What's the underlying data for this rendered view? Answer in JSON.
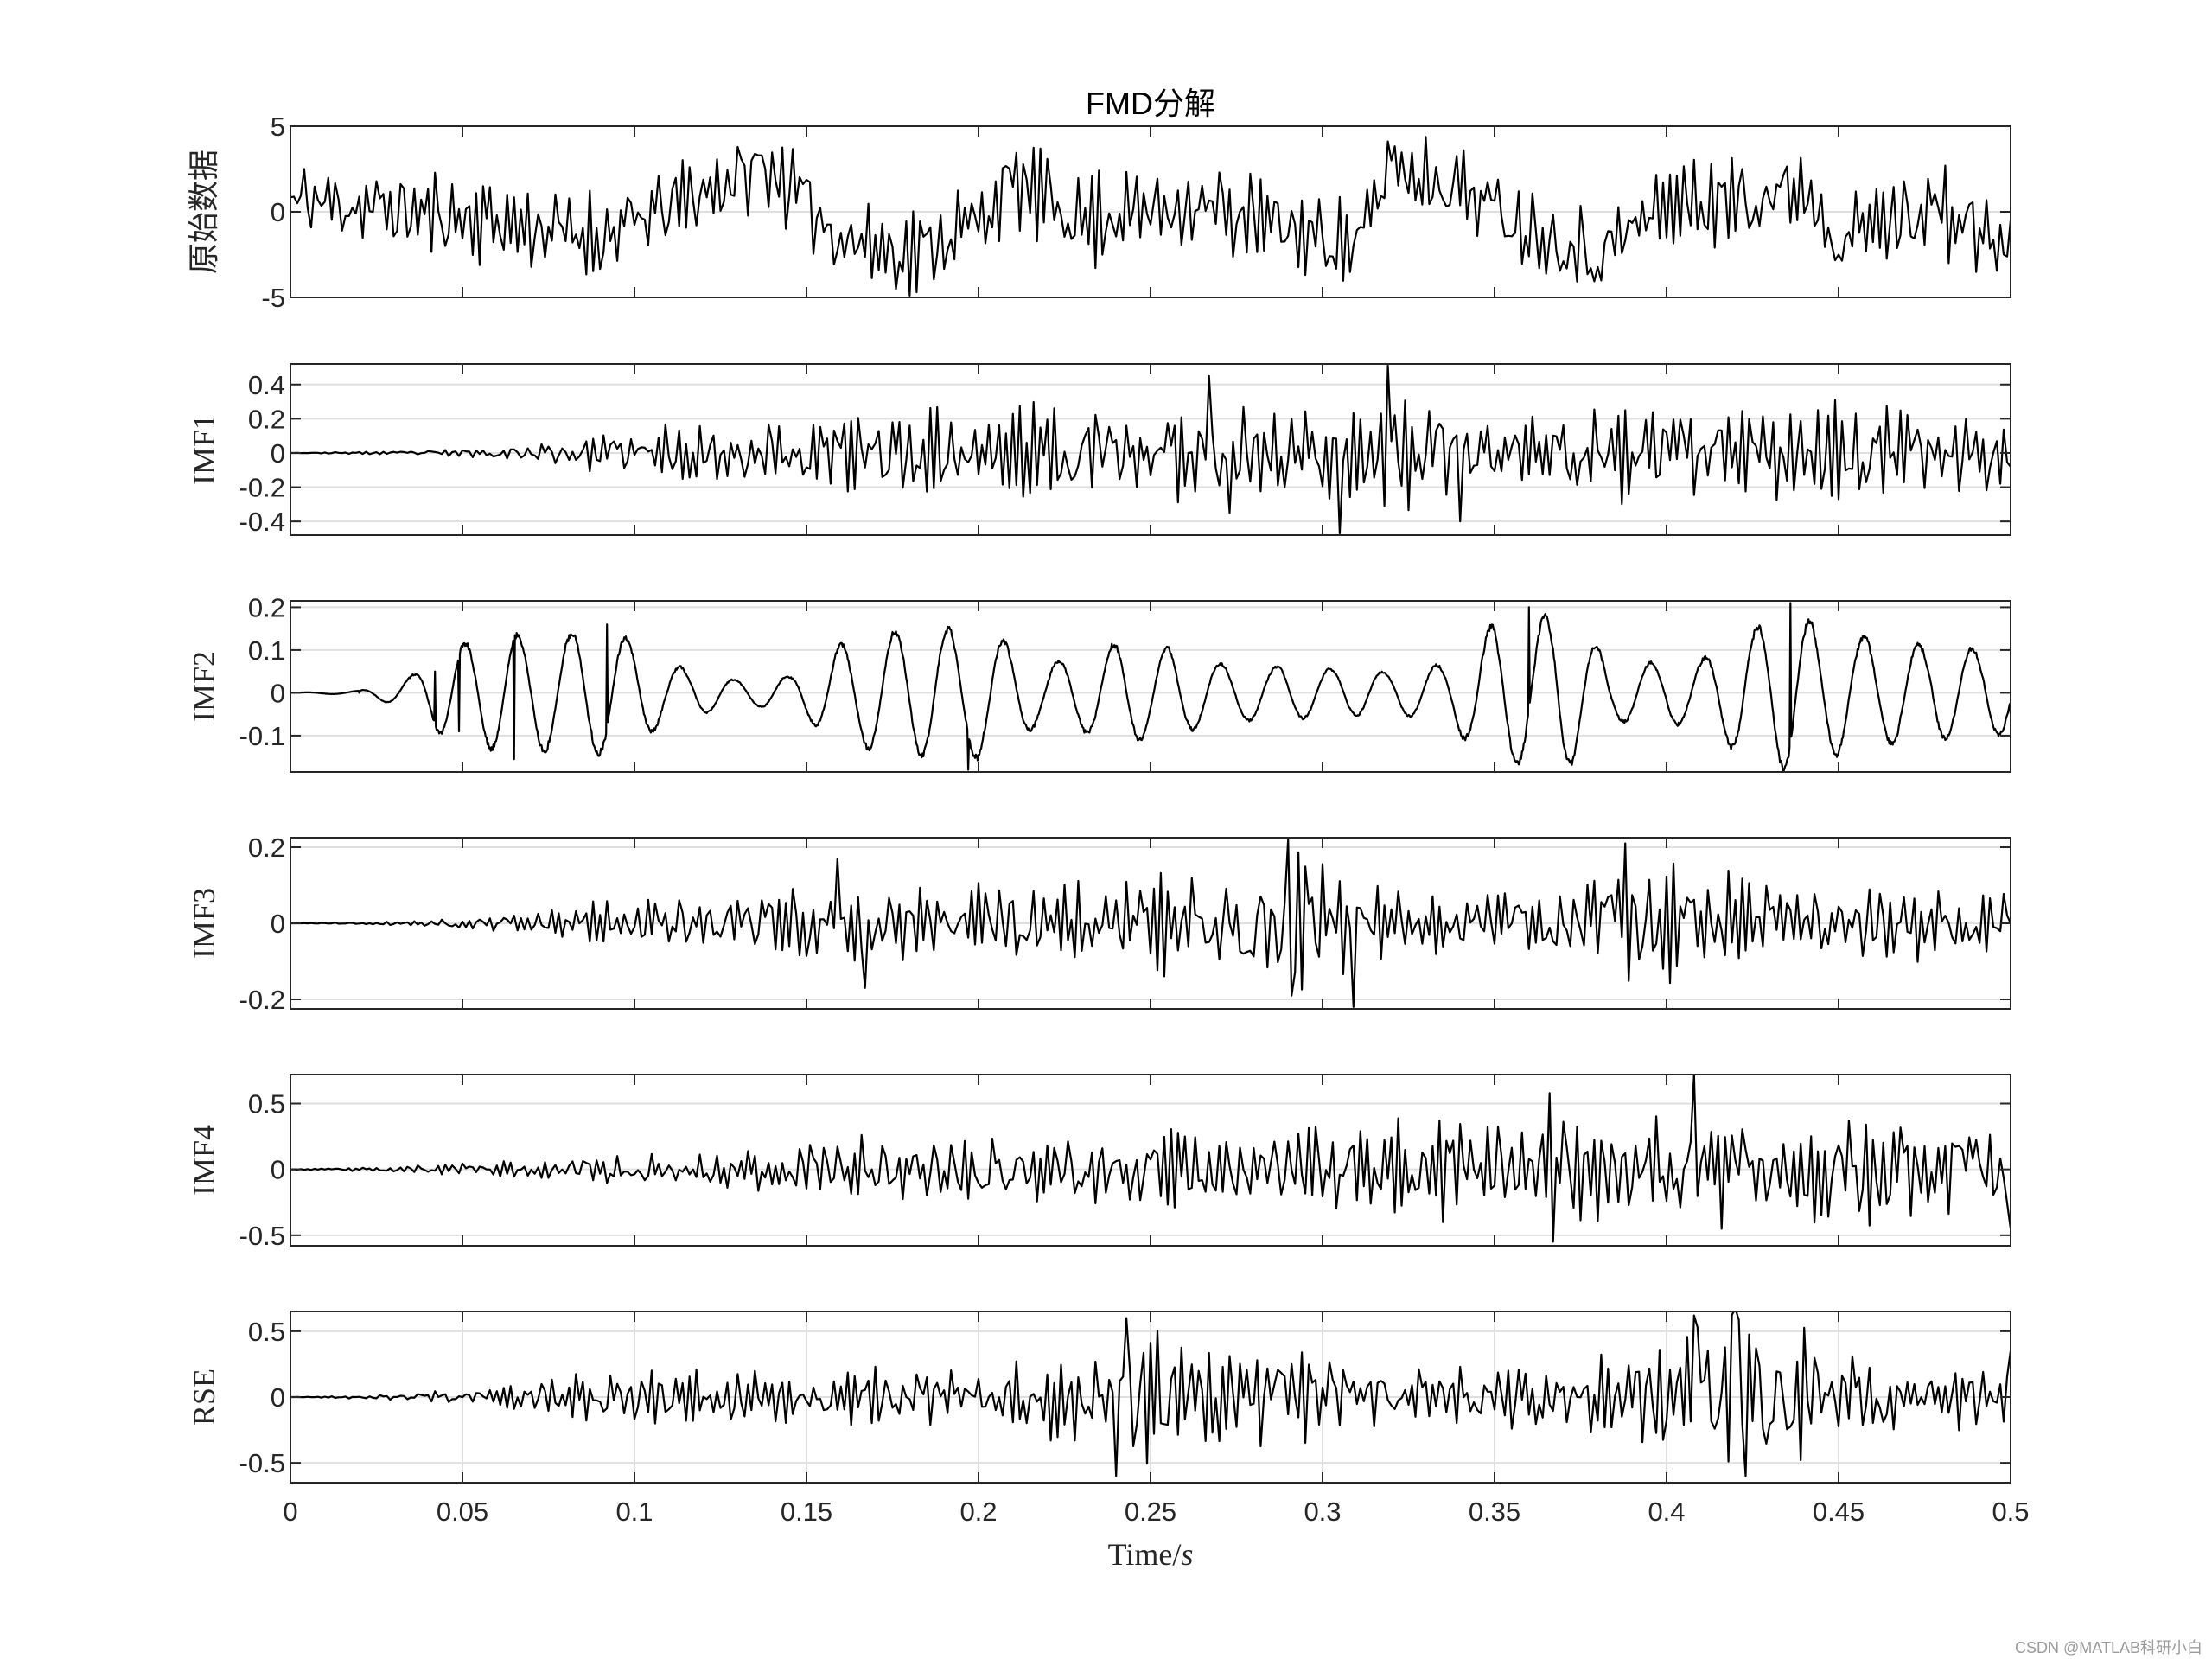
{
  "figure": {
    "title": "FMD分解",
    "xlabel_text": "Time/",
    "xlabel_italic": "s",
    "watermark": "CSDN @MATLAB科研小白",
    "line_color": "#000000",
    "grid_color": "#dfdfdf",
    "axes_color": "#262626"
  },
  "chart_data": [
    {
      "type": "line",
      "name": "原始数据",
      "ylabel": "原始数据",
      "ylim": [
        -5,
        5
      ],
      "yticks": [
        5,
        0,
        -5
      ],
      "ytick_labels": [
        "5",
        "0",
        "-5"
      ],
      "ygrid": [
        0
      ],
      "xlim": [
        0,
        0.5
      ],
      "xgrid": [],
      "show_xticks": false,
      "samples": 500,
      "seed": 11,
      "envelope": [
        [
          0,
          2.5
        ],
        [
          0.5,
          2.5
        ]
      ],
      "trend": [
        [
          0,
          0.8
        ],
        [
          0.06,
          -0.6
        ],
        [
          0.09,
          -1.5
        ],
        [
          0.13,
          2.0
        ],
        [
          0.14,
          2.5
        ],
        [
          0.16,
          -1.5
        ],
        [
          0.18,
          -2.5
        ],
        [
          0.2,
          -0.5
        ],
        [
          0.21,
          1.8
        ],
        [
          0.23,
          -0.5
        ],
        [
          0.26,
          0.5
        ],
        [
          0.3,
          -1.5
        ],
        [
          0.31,
          -2.0
        ],
        [
          0.32,
          2.5
        ],
        [
          0.34,
          1.5
        ],
        [
          0.36,
          -1.0
        ],
        [
          0.38,
          -2.5
        ],
        [
          0.4,
          0.5
        ],
        [
          0.42,
          0.5
        ],
        [
          0.44,
          1.5
        ],
        [
          0.45,
          -1.5
        ],
        [
          0.48,
          0.5
        ],
        [
          0.5,
          -2.5
        ]
      ],
      "data_points": [
        [
          0.002,
          0.5
        ],
        [
          0.004,
          2.5
        ],
        [
          0.056,
          1.5
        ],
        [
          0.136,
          3.3
        ],
        [
          0.178,
          -3.5
        ],
        [
          0.27,
          2.3
        ],
        [
          0.32,
          3.0
        ],
        [
          0.378,
          -3.3
        ],
        [
          0.4,
          -1.5
        ],
        [
          0.422,
          2.5
        ],
        [
          0.482,
          -3.0
        ],
        [
          0.5,
          -0.5
        ]
      ]
    },
    {
      "type": "line",
      "name": "IMF1",
      "ylabel": "IMF1",
      "ylim": [
        -0.48,
        0.52
      ],
      "yticks": [
        0.4,
        0.2,
        0,
        -0.2,
        -0.4
      ],
      "ytick_labels": [
        "0.4",
        "0.2",
        "0",
        "-0.2",
        "-0.4"
      ],
      "ygrid": [
        0.4,
        0.2,
        0,
        -0.2,
        -0.4
      ],
      "xlim": [
        0,
        0.5
      ],
      "xgrid": [],
      "show_xticks": false,
      "samples": 500,
      "seed": 23,
      "envelope": [
        [
          0,
          0.0
        ],
        [
          0.03,
          0.01
        ],
        [
          0.06,
          0.03
        ],
        [
          0.09,
          0.1
        ],
        [
          0.12,
          0.17
        ],
        [
          0.15,
          0.22
        ],
        [
          0.2,
          0.24
        ],
        [
          0.26,
          0.27
        ],
        [
          0.32,
          0.3
        ],
        [
          0.36,
          0.25
        ],
        [
          0.42,
          0.24
        ],
        [
          0.5,
          0.22
        ]
      ],
      "trend": [],
      "data_points": [
        [
          0.267,
          0.45
        ],
        [
          0.273,
          -0.35
        ],
        [
          0.305,
          -0.47
        ],
        [
          0.319,
          0.51
        ],
        [
          0.34,
          -0.4
        ],
        [
          0.5,
          -0.08
        ]
      ]
    },
    {
      "type": "line",
      "name": "IMF2",
      "ylabel": "IMF2",
      "ylim": [
        -0.185,
        0.215
      ],
      "yticks": [
        0.2,
        0.1,
        0,
        -0.1
      ],
      "ytick_labels": [
        "0.2",
        "0.1",
        "0",
        "-0.1"
      ],
      "ygrid": [
        0.2,
        0.1,
        0,
        -0.1
      ],
      "xlim": [
        0,
        0.5
      ],
      "xgrid": [],
      "show_xticks": false,
      "samples": 2000,
      "seed": 37,
      "oscillator": {
        "frequency": 64
      },
      "envelope": [
        [
          0,
          0.0
        ],
        [
          0.02,
          0.005
        ],
        [
          0.035,
          0.04
        ],
        [
          0.045,
          0.11
        ],
        [
          0.06,
          0.14
        ],
        [
          0.095,
          0.15
        ],
        [
          0.11,
          0.07
        ],
        [
          0.13,
          0.03
        ],
        [
          0.145,
          0.04
        ],
        [
          0.16,
          0.12
        ],
        [
          0.175,
          0.15
        ],
        [
          0.2,
          0.16
        ],
        [
          0.22,
          0.07
        ],
        [
          0.24,
          0.12
        ],
        [
          0.255,
          0.11
        ],
        [
          0.27,
          0.07
        ],
        [
          0.3,
          0.06
        ],
        [
          0.32,
          0.05
        ],
        [
          0.335,
          0.07
        ],
        [
          0.35,
          0.17
        ],
        [
          0.37,
          0.19
        ],
        [
          0.385,
          0.07
        ],
        [
          0.41,
          0.08
        ],
        [
          0.42,
          0.14
        ],
        [
          0.435,
          0.19
        ],
        [
          0.455,
          0.14
        ],
        [
          0.47,
          0.12
        ],
        [
          0.5,
          0.1
        ]
      ],
      "trend": [],
      "data_points": [
        [
          0.0,
          0.0
        ],
        [
          0.02,
          0.0
        ],
        [
          0.042,
          0.05
        ],
        [
          0.049,
          -0.09
        ],
        [
          0.065,
          -0.155
        ],
        [
          0.092,
          0.16
        ],
        [
          0.197,
          -0.18
        ],
        [
          0.36,
          0.2
        ],
        [
          0.436,
          0.21
        ],
        [
          0.5,
          -0.05
        ]
      ]
    },
    {
      "type": "line",
      "name": "IMF3",
      "ylabel": "IMF3",
      "ylim": [
        -0.225,
        0.225
      ],
      "yticks": [
        0.2,
        0,
        -0.2
      ],
      "ytick_labels": [
        "0.2",
        "0",
        "-0.2"
      ],
      "ygrid": [
        0.2,
        0,
        -0.2
      ],
      "xlim": [
        0,
        0.5
      ],
      "xgrid": [],
      "show_xticks": false,
      "samples": 500,
      "seed": 41,
      "envelope": [
        [
          0,
          0.0
        ],
        [
          0.03,
          0.005
        ],
        [
          0.06,
          0.02
        ],
        [
          0.09,
          0.05
        ],
        [
          0.12,
          0.07
        ],
        [
          0.15,
          0.09
        ],
        [
          0.2,
          0.1
        ],
        [
          0.25,
          0.1
        ],
        [
          0.29,
          0.16
        ],
        [
          0.31,
          0.14
        ],
        [
          0.33,
          0.07
        ],
        [
          0.36,
          0.09
        ],
        [
          0.39,
          0.15
        ],
        [
          0.42,
          0.12
        ],
        [
          0.5,
          0.08
        ]
      ],
      "trend": [],
      "data_points": [
        [
          0.159,
          0.17
        ],
        [
          0.167,
          -0.17
        ],
        [
          0.29,
          0.22
        ],
        [
          0.291,
          -0.19
        ],
        [
          0.309,
          -0.22
        ],
        [
          0.388,
          0.21
        ],
        [
          0.5,
          0.0
        ]
      ]
    },
    {
      "type": "line",
      "name": "IMF4",
      "ylabel": "IMF4",
      "ylim": [
        -0.58,
        0.72
      ],
      "yticks": [
        0.5,
        0,
        -0.5
      ],
      "ytick_labels": [
        "0.5",
        "0",
        "-0.5"
      ],
      "ygrid": [
        0.5,
        0,
        -0.5
      ],
      "xlim": [
        0,
        0.5
      ],
      "xgrid": [],
      "show_xticks": false,
      "samples": 500,
      "seed": 53,
      "envelope": [
        [
          0,
          0.0
        ],
        [
          0.03,
          0.02
        ],
        [
          0.06,
          0.05
        ],
        [
          0.09,
          0.1
        ],
        [
          0.12,
          0.15
        ],
        [
          0.15,
          0.2
        ],
        [
          0.2,
          0.24
        ],
        [
          0.25,
          0.27
        ],
        [
          0.3,
          0.3
        ],
        [
          0.33,
          0.33
        ],
        [
          0.36,
          0.38
        ],
        [
          0.4,
          0.42
        ],
        [
          0.45,
          0.38
        ],
        [
          0.5,
          0.35
        ]
      ],
      "trend": [],
      "data_points": [
        [
          0.366,
          0.58
        ],
        [
          0.367,
          -0.55
        ],
        [
          0.408,
          0.72
        ],
        [
          0.5,
          -0.45
        ]
      ]
    },
    {
      "type": "line",
      "name": "RSE",
      "ylabel": "RSE",
      "ylim": [
        -0.65,
        0.65
      ],
      "yticks": [
        0.5,
        0,
        -0.5
      ],
      "ytick_labels": [
        "0.5",
        "0",
        "-0.5"
      ],
      "ygrid": [
        0.5,
        0,
        -0.5
      ],
      "xlim": [
        0,
        0.5
      ],
      "xgrid": [
        0.05,
        0.1,
        0.15,
        0.2,
        0.25,
        0.3,
        0.35,
        0.4,
        0.45
      ],
      "show_xticks": true,
      "xticks": [
        0,
        0.05,
        0.1,
        0.15,
        0.2,
        0.25,
        0.3,
        0.35,
        0.4,
        0.45,
        0.5
      ],
      "xtick_labels": [
        "0",
        "0.05",
        "0.1",
        "0.15",
        "0.2",
        "0.25",
        "0.3",
        "0.35",
        "0.4",
        "0.45",
        "0.5"
      ],
      "samples": 500,
      "seed": 67,
      "envelope": [
        [
          0,
          0.0
        ],
        [
          0.03,
          0.02
        ],
        [
          0.06,
          0.06
        ],
        [
          0.08,
          0.14
        ],
        [
          0.1,
          0.18
        ],
        [
          0.13,
          0.2
        ],
        [
          0.15,
          0.18
        ],
        [
          0.2,
          0.2
        ],
        [
          0.22,
          0.35
        ],
        [
          0.24,
          0.48
        ],
        [
          0.27,
          0.42
        ],
        [
          0.3,
          0.3
        ],
        [
          0.33,
          0.2
        ],
        [
          0.37,
          0.22
        ],
        [
          0.39,
          0.35
        ],
        [
          0.41,
          0.55
        ],
        [
          0.43,
          0.55
        ],
        [
          0.45,
          0.3
        ],
        [
          0.5,
          0.2
        ]
      ],
      "trend": [],
      "data_points": [
        [
          0.24,
          -0.6
        ],
        [
          0.243,
          0.6
        ],
        [
          0.408,
          0.62
        ],
        [
          0.42,
          0.67
        ],
        [
          0.423,
          -0.6
        ],
        [
          0.5,
          0.35
        ]
      ]
    }
  ]
}
